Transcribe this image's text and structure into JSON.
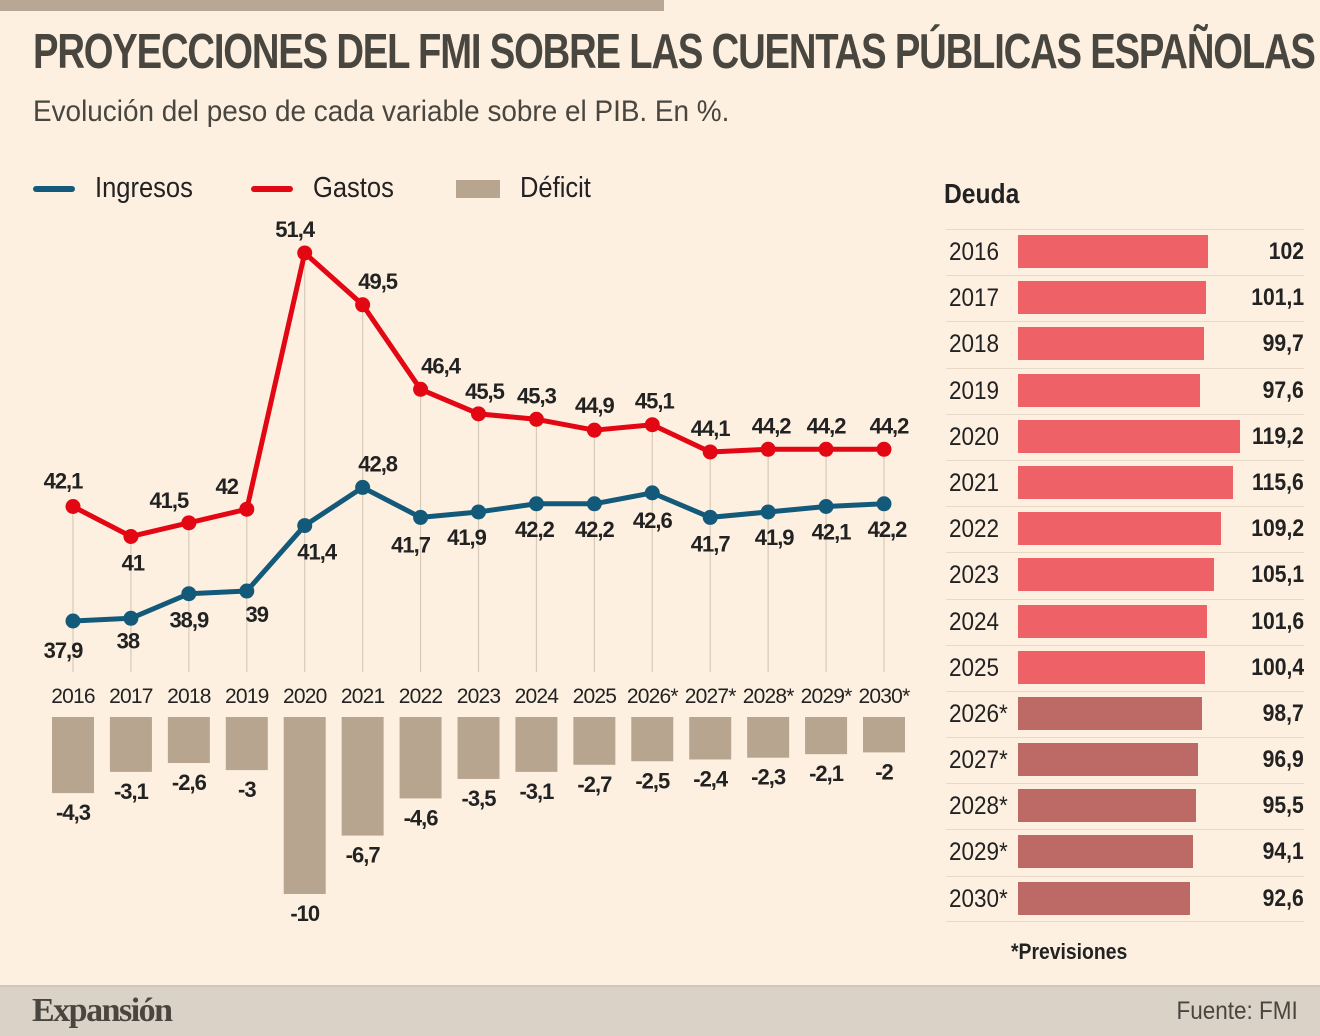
{
  "header": {
    "title": "PROYECCIONES DEL FMI SOBRE LAS CUENTAS PÚBLICAS ESPAÑOLAS",
    "subtitle": "Evolución del peso de cada variable sobre el PIB. En %."
  },
  "legend": {
    "ingresos": "Ingresos",
    "gastos": "Gastos",
    "deficit": "Déficit"
  },
  "colors": {
    "ingresos": "#135a7a",
    "gastos": "#e30613",
    "deficit": "#b8a590",
    "deuda_actual": "#ee6267",
    "deuda_prevision": "#bd6a66",
    "gridline": "#d8cab8"
  },
  "chart_data": [
    {
      "type": "line",
      "title": "Ingresos y Gastos (% PIB)",
      "categories": [
        "2016",
        "2017",
        "2018",
        "2019",
        "2020",
        "2021",
        "2022",
        "2023",
        "2024",
        "2025",
        "2026*",
        "2027*",
        "2028*",
        "2029*",
        "2030*"
      ],
      "series": [
        {
          "name": "Ingresos",
          "values": [
            37.9,
            38,
            38.9,
            39,
            41.4,
            42.8,
            41.7,
            41.9,
            42.2,
            42.2,
            42.6,
            41.7,
            41.9,
            42.1,
            42.2
          ],
          "labels": [
            "37,9",
            "38",
            "38,9",
            "39",
            "41,4",
            "42,8",
            "41,7",
            "41,9",
            "42,2",
            "42,2",
            "42,6",
            "41,7",
            "41,9",
            "42,1",
            "42,2"
          ]
        },
        {
          "name": "Gastos",
          "values": [
            42.1,
            41,
            41.5,
            42,
            51.4,
            49.5,
            46.4,
            45.5,
            45.3,
            44.9,
            45.1,
            44.1,
            44.2,
            44.2,
            44.2
          ],
          "labels": [
            "42,1",
            "41",
            "41,5",
            "42",
            "51,4",
            "49,5",
            "46,4",
            "45,5",
            "45,3",
            "44,9",
            "45,1",
            "44,1",
            "44,2",
            "44,2",
            "44,2"
          ]
        }
      ],
      "grid": "vertical",
      "legend": "top-left"
    },
    {
      "type": "bar",
      "title": "Déficit (% PIB)",
      "categories": [
        "2016",
        "2017",
        "2018",
        "2019",
        "2020",
        "2021",
        "2022",
        "2023",
        "2024",
        "2025",
        "2026*",
        "2027*",
        "2028*",
        "2029*",
        "2030*"
      ],
      "values": [
        -4.3,
        -3.1,
        -2.6,
        -3,
        -10,
        -6.7,
        -4.6,
        -3.5,
        -3.1,
        -2.7,
        -2.5,
        -2.4,
        -2.3,
        -2.1,
        -2
      ],
      "labels": [
        "-4,3",
        "-3,1",
        "-2,6",
        "-3",
        "-10",
        "-6,7",
        "-4,6",
        "-3,5",
        "-3,1",
        "-2,7",
        "-2,5",
        "-2,4",
        "-2,3",
        "-2,1",
        "-2"
      ]
    },
    {
      "type": "bar",
      "orientation": "horizontal",
      "title": "Deuda",
      "categories": [
        "2016",
        "2017",
        "2018",
        "2019",
        "2020",
        "2021",
        "2022",
        "2023",
        "2024",
        "2025",
        "2026*",
        "2027*",
        "2028*",
        "2029*",
        "2030*"
      ],
      "values": [
        102,
        101.1,
        99.7,
        97.6,
        119.2,
        115.6,
        109.2,
        105.1,
        101.6,
        100.4,
        98.7,
        96.9,
        95.5,
        94.1,
        92.6
      ],
      "labels": [
        "102",
        "101,1",
        "99,7",
        "97,6",
        "119,2",
        "115,6",
        "109,2",
        "105,1",
        "101,6",
        "100,4",
        "98,7",
        "96,9",
        "95,5",
        "94,1",
        "92,6"
      ],
      "forecast": [
        false,
        false,
        false,
        false,
        false,
        false,
        false,
        false,
        false,
        false,
        true,
        true,
        true,
        true,
        true
      ]
    }
  ],
  "deuda": {
    "title": "Deuda"
  },
  "note": "*Previsiones",
  "footer": {
    "brand": "Expansión",
    "source": "Fuente: FMI"
  }
}
